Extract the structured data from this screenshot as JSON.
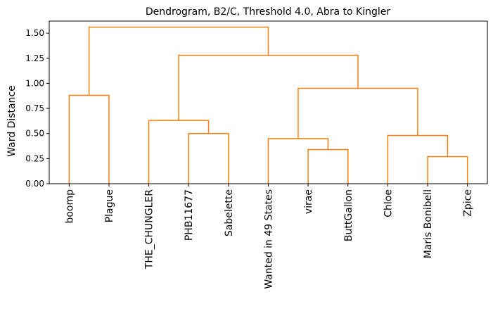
{
  "chart_data": {
    "type": "dendrogram",
    "title": "Dendrogram, B2/C, Threshold 4.0, Abra to Kingler",
    "xlabel": "",
    "ylabel": "Ward Distance",
    "ylim": [
      0,
      1.62
    ],
    "yticks": [
      "0.00",
      "0.25",
      "0.50",
      "0.75",
      "1.00",
      "1.25",
      "1.50"
    ],
    "ytick_values": [
      0,
      0.25,
      0.5,
      0.75,
      1.0,
      1.25,
      1.5
    ],
    "leaves": [
      "boomp",
      "Plague",
      "THE_CHUNGLER",
      "PHB11677",
      "Sabelette",
      "Wanted in 49 States",
      "virae",
      "ButtGallon",
      "Chloe",
      "Maris Bonibell",
      "Zpice"
    ],
    "link_color": "#ff7f0e",
    "links": [
      {
        "left": 0,
        "right": 1,
        "height": 0.88
      },
      {
        "left": 3,
        "right": 4,
        "height": 0.5
      },
      {
        "left": 2,
        "right": 12,
        "height": 0.63
      },
      {
        "left": 6,
        "right": 7,
        "height": 0.34
      },
      {
        "left": 5,
        "right": 14,
        "height": 0.45
      },
      {
        "left": 9,
        "right": 10,
        "height": 0.27
      },
      {
        "left": 8,
        "right": 16,
        "height": 0.48
      },
      {
        "left": 15,
        "right": 17,
        "height": 0.95
      },
      {
        "left": 13,
        "right": 18,
        "height": 1.28
      },
      {
        "left": 11,
        "right": 19,
        "height": 1.56
      }
    ]
  }
}
